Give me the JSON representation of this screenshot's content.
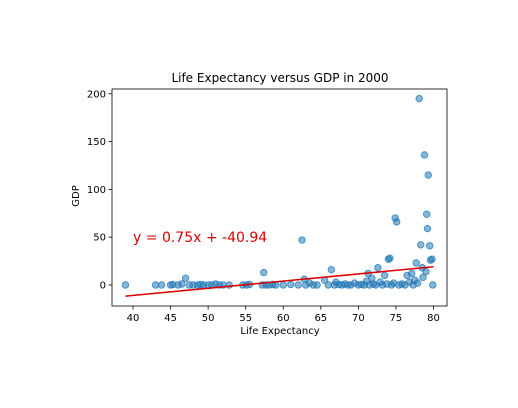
{
  "chart_data": {
    "type": "scatter",
    "title": "Life Expectancy versus GDP in 2000",
    "xlabel": "Life Expectancy",
    "ylabel": "GDP",
    "xlim": [
      37.2,
      81.8
    ],
    "ylim": [
      -22,
      205
    ],
    "xticks": [
      40,
      45,
      50,
      55,
      60,
      65,
      70,
      75,
      80
    ],
    "yticks": [
      0,
      50,
      100,
      150,
      200
    ],
    "grid": false,
    "point_color": "#1f77b4",
    "regression": {
      "slope": 0.75,
      "intercept": -40.94,
      "color": "#dd0000",
      "label": "y = 0.75x + -40.94",
      "x_start": 39.0,
      "x_end": 80.0,
      "label_x": 40.0,
      "label_y": 50.0
    },
    "points": [
      {
        "x": 39.0,
        "y": 0.0
      },
      {
        "x": 43.0,
        "y": 0.0
      },
      {
        "x": 43.8,
        "y": 0.0
      },
      {
        "x": 45.0,
        "y": 0.0
      },
      {
        "x": 45.3,
        "y": 0.5
      },
      {
        "x": 46.0,
        "y": 0.0
      },
      {
        "x": 46.5,
        "y": 1.0
      },
      {
        "x": 47.0,
        "y": 7.0
      },
      {
        "x": 47.5,
        "y": 0.0
      },
      {
        "x": 48.0,
        "y": 0.0
      },
      {
        "x": 48.6,
        "y": 0.0
      },
      {
        "x": 49.0,
        "y": 0.5
      },
      {
        "x": 49.4,
        "y": 0.0
      },
      {
        "x": 50.0,
        "y": 0.0
      },
      {
        "x": 50.5,
        "y": 0.0
      },
      {
        "x": 51.0,
        "y": 1.0
      },
      {
        "x": 51.5,
        "y": 0.0
      },
      {
        "x": 52.0,
        "y": 0.0
      },
      {
        "x": 52.8,
        "y": 0.0
      },
      {
        "x": 54.6,
        "y": 0.0
      },
      {
        "x": 55.1,
        "y": 0.0
      },
      {
        "x": 55.5,
        "y": 0.5
      },
      {
        "x": 57.2,
        "y": 0.0
      },
      {
        "x": 57.4,
        "y": 13.0
      },
      {
        "x": 57.7,
        "y": 0.0
      },
      {
        "x": 58.1,
        "y": 0.0
      },
      {
        "x": 58.6,
        "y": 0.5
      },
      {
        "x": 59.0,
        "y": 0.0
      },
      {
        "x": 60.0,
        "y": 0.0
      },
      {
        "x": 61.0,
        "y": 0.5
      },
      {
        "x": 62.0,
        "y": 0.0
      },
      {
        "x": 62.5,
        "y": 47.0
      },
      {
        "x": 62.8,
        "y": 6.0
      },
      {
        "x": 63.0,
        "y": 0.0
      },
      {
        "x": 63.5,
        "y": 2.0
      },
      {
        "x": 64.0,
        "y": 0.0
      },
      {
        "x": 64.5,
        "y": 0.0
      },
      {
        "x": 65.5,
        "y": 5.0
      },
      {
        "x": 66.0,
        "y": 0.0
      },
      {
        "x": 66.4,
        "y": 16.0
      },
      {
        "x": 66.8,
        "y": 0.0
      },
      {
        "x": 67.0,
        "y": 3.0
      },
      {
        "x": 67.4,
        "y": 0.5
      },
      {
        "x": 67.8,
        "y": 0.0
      },
      {
        "x": 68.2,
        "y": 1.0
      },
      {
        "x": 68.6,
        "y": 0.0
      },
      {
        "x": 69.0,
        "y": 0.0
      },
      {
        "x": 69.5,
        "y": 2.0
      },
      {
        "x": 70.0,
        "y": 0.0
      },
      {
        "x": 70.4,
        "y": 0.5
      },
      {
        "x": 70.8,
        "y": 0.0
      },
      {
        "x": 71.1,
        "y": 4.0
      },
      {
        "x": 71.3,
        "y": 12.0
      },
      {
        "x": 71.5,
        "y": 0.0
      },
      {
        "x": 71.8,
        "y": 7.0
      },
      {
        "x": 72.0,
        "y": 1.0
      },
      {
        "x": 72.3,
        "y": 0.0
      },
      {
        "x": 72.6,
        "y": 18.0
      },
      {
        "x": 72.9,
        "y": 3.0
      },
      {
        "x": 73.2,
        "y": 0.0
      },
      {
        "x": 73.5,
        "y": 10.0
      },
      {
        "x": 73.8,
        "y": 1.0
      },
      {
        "x": 74.0,
        "y": 27.0
      },
      {
        "x": 74.2,
        "y": 28.0
      },
      {
        "x": 74.4,
        "y": 0.0
      },
      {
        "x": 74.7,
        "y": 2.0
      },
      {
        "x": 74.9,
        "y": 70.0
      },
      {
        "x": 75.1,
        "y": 66.0
      },
      {
        "x": 75.4,
        "y": 0.0
      },
      {
        "x": 75.8,
        "y": 1.0
      },
      {
        "x": 76.2,
        "y": 0.0
      },
      {
        "x": 76.5,
        "y": 10.0
      },
      {
        "x": 76.8,
        "y": 3.0
      },
      {
        "x": 77.1,
        "y": 12.0
      },
      {
        "x": 77.3,
        "y": 0.0
      },
      {
        "x": 77.5,
        "y": 5.0
      },
      {
        "x": 77.7,
        "y": 23.0
      },
      {
        "x": 77.9,
        "y": 2.0
      },
      {
        "x": 78.1,
        "y": 195.0
      },
      {
        "x": 78.3,
        "y": 42.0
      },
      {
        "x": 78.5,
        "y": 18.0
      },
      {
        "x": 78.6,
        "y": 8.0
      },
      {
        "x": 78.8,
        "y": 136.0
      },
      {
        "x": 79.0,
        "y": 14.0
      },
      {
        "x": 79.1,
        "y": 74.0
      },
      {
        "x": 79.2,
        "y": 59.0
      },
      {
        "x": 79.3,
        "y": 115.0
      },
      {
        "x": 79.5,
        "y": 41.0
      },
      {
        "x": 79.6,
        "y": 26.0
      },
      {
        "x": 79.8,
        "y": 27.0
      },
      {
        "x": 79.9,
        "y": 0.0
      }
    ]
  }
}
